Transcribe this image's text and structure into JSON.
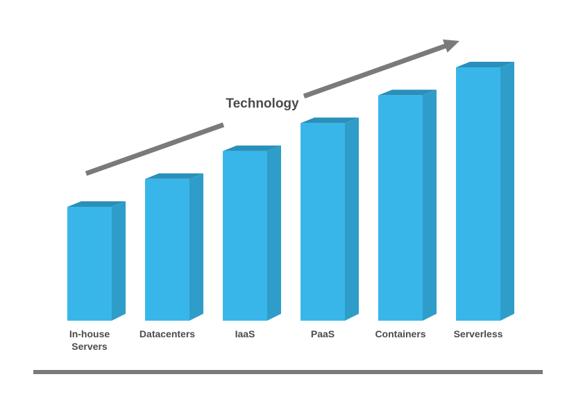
{
  "chart_data": {
    "type": "bar",
    "style": "3d-column",
    "categories": [
      "In-house\nServers",
      "Datacenters",
      "IaaS",
      "PaaS",
      "Containers",
      "Serverless"
    ],
    "values": [
      1,
      2,
      3,
      4,
      5,
      6
    ],
    "title": "Technology",
    "xlabel": "",
    "ylabel": "",
    "grid": false,
    "legend": "none",
    "colors": {
      "bar_front": "#38b6ea",
      "bar_side": "#2f9dc9",
      "bar_top": "#2a90ba",
      "arrow": "#7a7a7a",
      "baseline": "#7a7a7a",
      "label": "#4a4a4a"
    }
  }
}
